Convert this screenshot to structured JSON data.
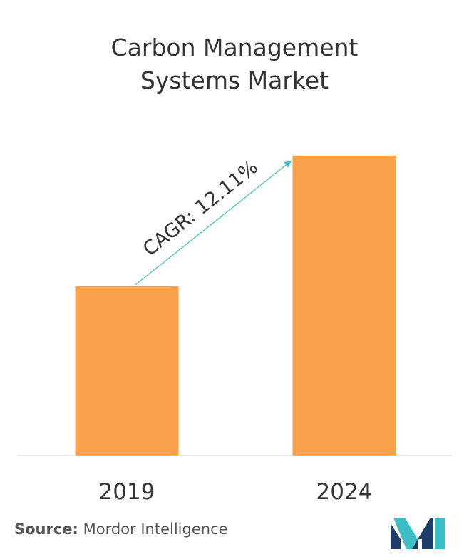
{
  "title_line1": "Carbon Management",
  "title_line2": "Systems Market",
  "chart_data": {
    "type": "bar",
    "categories": [
      "2019",
      "2024"
    ],
    "values": [
      1.0,
      1.77
    ],
    "title": "Carbon Management Systems Market",
    "annotation": "CAGR: 12.11%",
    "bar_color": "#f9a04a",
    "axis_color": "#cccccc",
    "annotation_color": "#3bbfc4",
    "grid": false,
    "legend": "none"
  },
  "source": {
    "label": "Source:",
    "name": "Mordor Intelligence"
  },
  "logo": {
    "icon": "mordor-intelligence-logo",
    "colors": [
      "#1f3d6b",
      "#3bbfc4"
    ]
  }
}
